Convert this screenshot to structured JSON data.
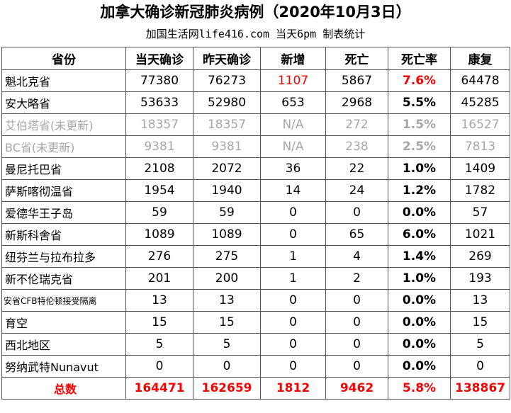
{
  "title": "加拿大确诊新冠肺炎病例（2020年10月3日）",
  "subtitle": "加国生活网life416.com 当天6pm 制表统计",
  "headers": [
    "省份",
    "当天确诊",
    "昨天确诊",
    "新增",
    "死亡",
    "死亡率",
    "康复"
  ],
  "rows": [
    {
      "name": "魁北克省",
      "today": "77380",
      "yesterday": "76273",
      "new": "1107",
      "deaths": "5867",
      "rate": "7.6%",
      "recovered": "64478",
      "stale": false,
      "rate_red": true,
      "new_red": true
    },
    {
      "name": "安大略省",
      "today": "53633",
      "yesterday": "52980",
      "new": "653",
      "deaths": "2968",
      "rate": "5.5%",
      "recovered": "45285",
      "stale": false,
      "rate_red": false,
      "new_red": false
    },
    {
      "name": "艾伯塔省(未更新)",
      "today": "18357",
      "yesterday": "18357",
      "new": "N/A",
      "deaths": "272",
      "rate": "1.5%",
      "recovered": "16527",
      "stale": true,
      "rate_red": false,
      "new_red": false
    },
    {
      "name": "BC省(未更新)",
      "today": "9381",
      "yesterday": "9381",
      "new": "N/A",
      "deaths": "238",
      "rate": "2.5%",
      "recovered": "7813",
      "stale": true,
      "rate_red": false,
      "new_red": false
    },
    {
      "name": "曼尼托巴省",
      "today": "2108",
      "yesterday": "2072",
      "new": "36",
      "deaths": "22",
      "rate": "1.0%",
      "recovered": "1409",
      "stale": false,
      "rate_red": false,
      "new_red": false
    },
    {
      "name": "萨斯喀彻温省",
      "today": "1954",
      "yesterday": "1940",
      "new": "14",
      "deaths": "24",
      "rate": "1.2%",
      "recovered": "1782",
      "stale": false,
      "rate_red": false,
      "new_red": false
    },
    {
      "name": "爱德华王子岛",
      "today": "59",
      "yesterday": "59",
      "new": "0",
      "deaths": "0",
      "rate": "0.0%",
      "recovered": "57",
      "stale": false,
      "rate_red": false,
      "new_red": false
    },
    {
      "name": "新斯科舍省",
      "today": "1089",
      "yesterday": "1089",
      "new": "0",
      "deaths": "65",
      "rate": "6.0%",
      "recovered": "1021",
      "stale": false,
      "rate_red": false,
      "new_red": false
    },
    {
      "name": "纽芬兰与拉布拉多",
      "today": "276",
      "yesterday": "275",
      "new": "1",
      "deaths": "4",
      "rate": "1.4%",
      "recovered": "269",
      "stale": false,
      "rate_red": false,
      "new_red": false
    },
    {
      "name": "新不伦瑞克省",
      "today": "201",
      "yesterday": "200",
      "new": "1",
      "deaths": "2",
      "rate": "1.0%",
      "recovered": "193",
      "stale": false,
      "rate_red": false,
      "new_red": false
    },
    {
      "name": "安省CFB特伦顿接受隔离",
      "today": "13",
      "yesterday": "13",
      "new": "0",
      "deaths": "0",
      "rate": "0.0%",
      "recovered": "13",
      "stale": false,
      "rate_red": false,
      "new_red": false,
      "small": true
    },
    {
      "name": "育空",
      "today": "15",
      "yesterday": "15",
      "new": "0",
      "deaths": "0",
      "rate": "0.0%",
      "recovered": "15",
      "stale": false,
      "rate_red": false,
      "new_red": false
    },
    {
      "name": "西北地区",
      "today": "5",
      "yesterday": "5",
      "new": "0",
      "deaths": "0",
      "rate": "0.0%",
      "recovered": "5",
      "stale": false,
      "rate_red": false,
      "new_red": false
    },
    {
      "name": "努纳武特Nunavut",
      "today": "0",
      "yesterday": "0",
      "new": "0",
      "deaths": "0",
      "rate": "0.0%",
      "recovered": "0",
      "stale": false,
      "rate_red": false,
      "new_red": false
    }
  ],
  "total": {
    "name": "总数",
    "today": "164471",
    "yesterday": "162659",
    "new": "1812",
    "deaths": "9462",
    "rate": "5.8%",
    "recovered": "138867"
  },
  "colors": {
    "red": "#ff0000",
    "stale_gray": "#a6a6a6"
  }
}
